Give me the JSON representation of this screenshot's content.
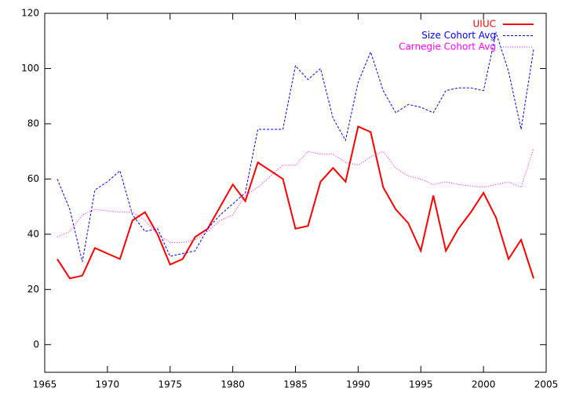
{
  "chart_data": {
    "type": "line",
    "x": [
      1966,
      1967,
      1968,
      1969,
      1970,
      1971,
      1972,
      1973,
      1974,
      1975,
      1976,
      1977,
      1978,
      1979,
      1980,
      1981,
      1982,
      1983,
      1984,
      1985,
      1986,
      1987,
      1988,
      1989,
      1990,
      1991,
      1992,
      1993,
      1994,
      1995,
      1996,
      1997,
      1998,
      1999,
      2000,
      2001,
      2002,
      2003,
      2004
    ],
    "series": [
      {
        "name": "UIUC",
        "color": "#ff0000",
        "style": "solid",
        "values": [
          31,
          24,
          25,
          35,
          33,
          31,
          45,
          48,
          40,
          29,
          31,
          39,
          42,
          50,
          58,
          52,
          66,
          63,
          60,
          42,
          43,
          59,
          64,
          59,
          79,
          77,
          57,
          49,
          44,
          34,
          54,
          34,
          42,
          48,
          55,
          46,
          31,
          38,
          24
        ]
      },
      {
        "name": "Size Cohort Avg",
        "color": "#0000ff",
        "style": "dashed",
        "values": [
          60,
          49,
          30,
          56,
          59,
          63,
          47,
          41,
          42,
          32,
          33,
          34,
          42,
          47,
          51,
          55,
          78,
          78,
          78,
          101,
          96,
          100,
          82,
          74,
          95,
          106,
          92,
          84,
          87,
          86,
          84,
          92,
          93,
          93,
          92,
          113,
          99,
          78,
          107
        ]
      },
      {
        "name": "Carnegie Cohort Avg",
        "color": "#ff00ff",
        "style": "dotted",
        "values": [
          39,
          41,
          47,
          49,
          48.5,
          48,
          48,
          45,
          40,
          37,
          37,
          38,
          41,
          45,
          47,
          54,
          57,
          61,
          65,
          65,
          70,
          69,
          69,
          66,
          65,
          68,
          70,
          64,
          61,
          60,
          58,
          59,
          58,
          57.5,
          57,
          58,
          59,
          57,
          71
        ]
      }
    ],
    "xlim": [
      1965,
      2005
    ],
    "xticks": [
      1965,
      1970,
      1975,
      1980,
      1985,
      1990,
      1995,
      2000,
      2005
    ],
    "ylim": [
      -10,
      120
    ],
    "yticks": [
      0,
      20,
      40,
      60,
      80,
      100,
      120
    ],
    "legend": "top-right"
  }
}
